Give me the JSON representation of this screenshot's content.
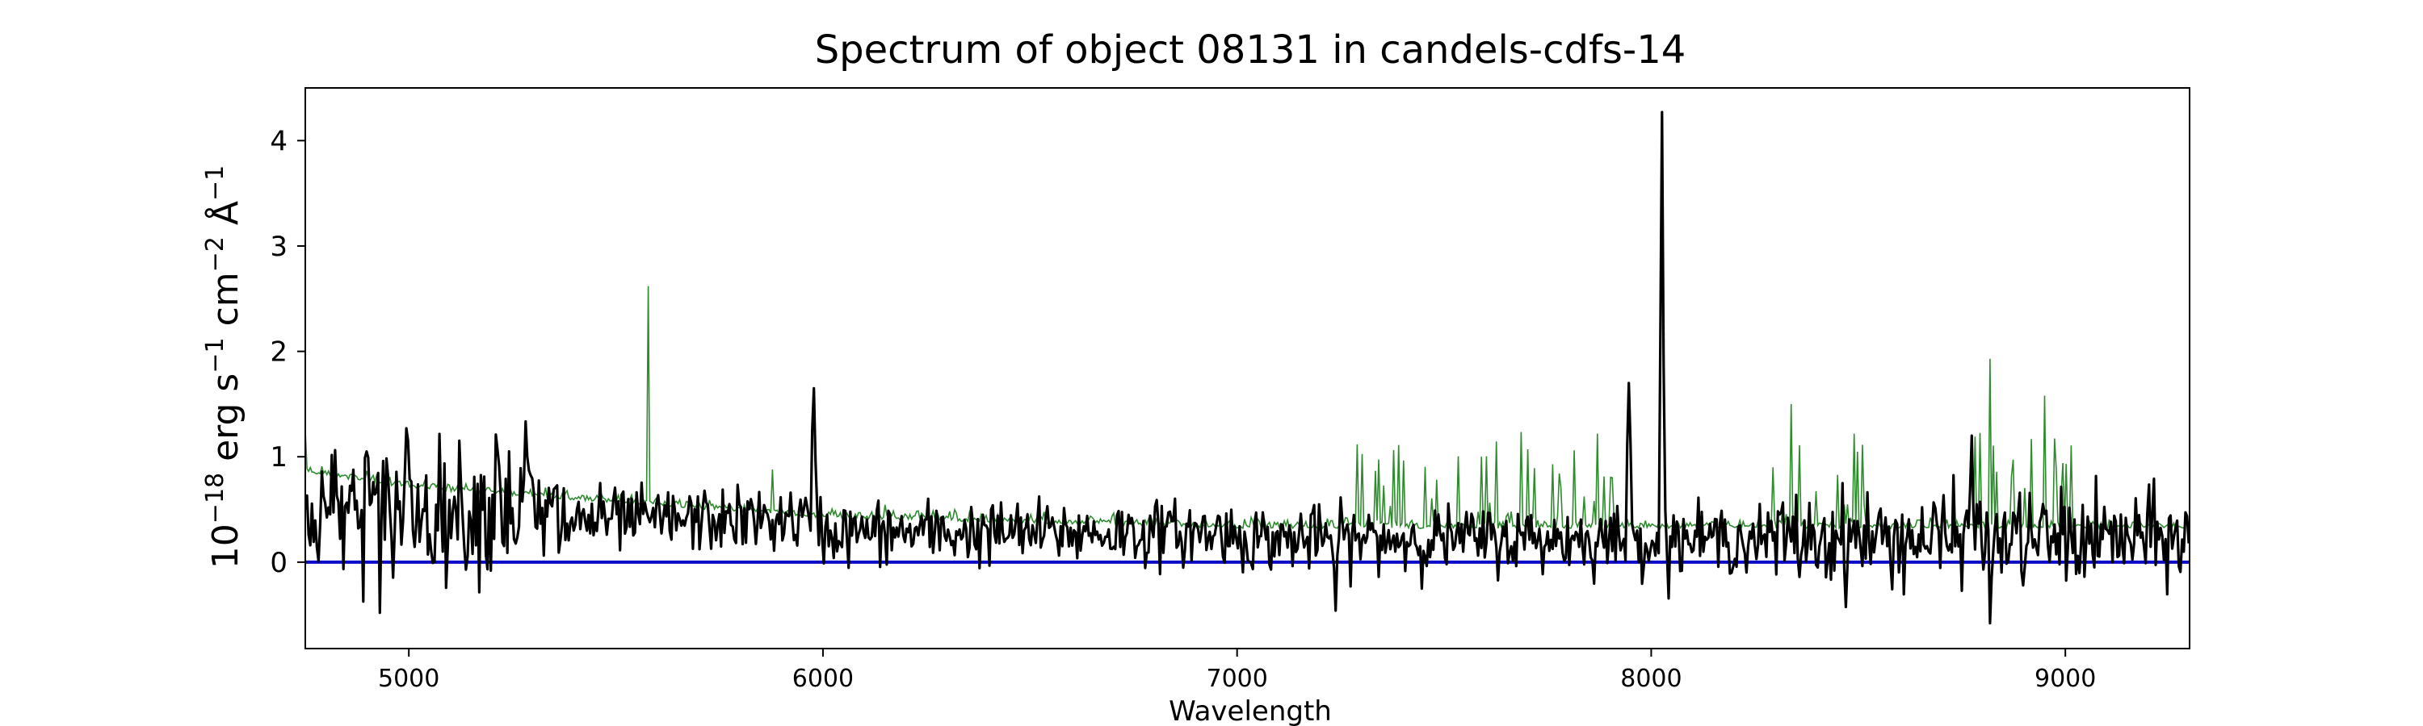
{
  "chart_data": {
    "type": "line",
    "title": "Spectrum of object 08131 in candels-cdfs-14",
    "xlabel": "Wavelength",
    "ylabel_parts": {
      "base": "10",
      "exp": "−18",
      "unit1": " erg s",
      "exp2": "−1",
      "unit2": " cm",
      "exp3": "−2",
      "unit3": " Å",
      "exp4": "−1"
    },
    "xlim": [
      4750,
      9300
    ],
    "ylim": [
      -0.82,
      4.5
    ],
    "x_ticks": [
      5000,
      6000,
      7000,
      8000,
      9000
    ],
    "x_tick_labels": [
      "5000",
      "6000",
      "7000",
      "8000",
      "9000"
    ],
    "y_ticks": [
      0,
      1,
      2,
      3,
      4
    ],
    "y_tick_labels": [
      "0",
      "1",
      "2",
      "3",
      "4"
    ],
    "grid": false,
    "legend": "none",
    "colors": {
      "spectrum": "#000000",
      "error": "#2e8b2e",
      "zero": "#0a0ac8"
    },
    "series": [
      {
        "role": "spectrum",
        "style": "black thick line",
        "x_range": [
          4750,
          9300
        ],
        "features": [
          {
            "x": 4900,
            "y": 1.05
          },
          {
            "x": 4930,
            "y": -0.48
          },
          {
            "x": 4995,
            "y": 1.27
          },
          {
            "x": 5215,
            "y": 1.07
          },
          {
            "x": 5285,
            "y": 1.0
          },
          {
            "x": 5980,
            "y": 1.65
          },
          {
            "x": 7240,
            "y": -0.46
          },
          {
            "x": 7945,
            "y": 1.7
          },
          {
            "x": 8025,
            "y": 4.27
          },
          {
            "x": 8775,
            "y": 1.2
          },
          {
            "x": 8820,
            "y": -0.58
          }
        ]
      },
      {
        "role": "error",
        "style": "thin green line",
        "features": [
          {
            "x": 4750,
            "y": 1.25
          },
          {
            "x": 5580,
            "y": 2.62
          },
          {
            "x": 5880,
            "y": 0.88
          },
          {
            "x": 7590,
            "y": 1.0
          },
          {
            "x": 8340,
            "y": 1.5
          },
          {
            "x": 8820,
            "y": 1.93
          },
          {
            "x": 8950,
            "y": 1.58
          }
        ]
      },
      {
        "role": "zero",
        "style": "blue line at y=0",
        "values": [
          [
            4750,
            0
          ],
          [
            9300,
            0
          ]
        ]
      }
    ]
  }
}
